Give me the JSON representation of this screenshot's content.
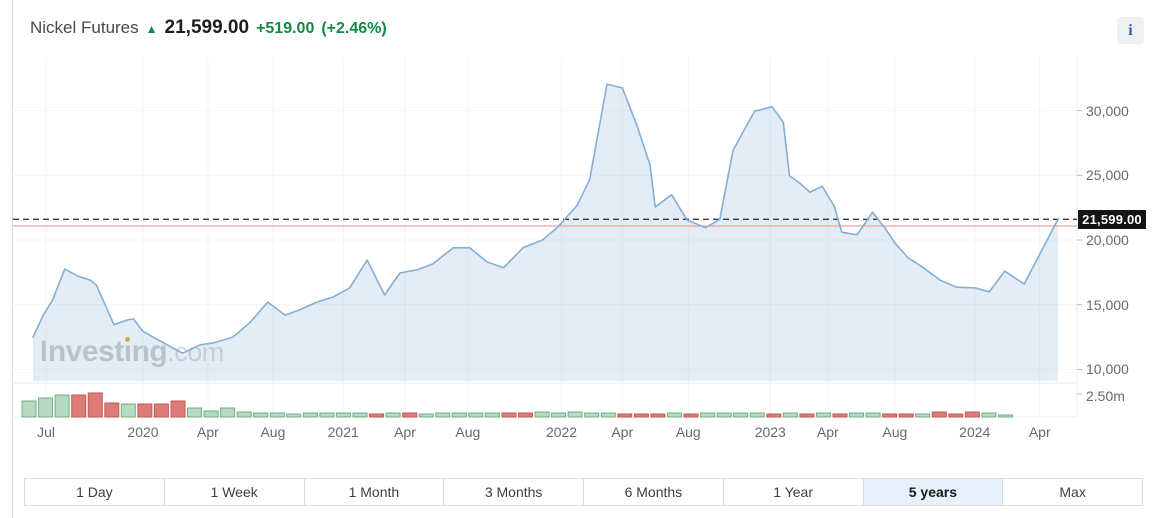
{
  "header": {
    "title": "Nickel Futures",
    "up_arrow": "▲",
    "price": "21,599.00",
    "change": "+519.00",
    "change_percent": "(+2.46%)",
    "info_icon": "i"
  },
  "watermark": {
    "brand_part1": "Invest",
    "brand_dotless_i": "ı",
    "brand_part2": "ng",
    "suffix": ".com"
  },
  "colors": {
    "positive": "#0e8c43",
    "line": "#84aed6",
    "area_fill": "rgba(133,174,214,0.22)",
    "dashed_line": "#3a3a3a",
    "prior_close_line": "#f28b84",
    "vol_up": "#b5d9c1",
    "vol_up_border": "#6fae87",
    "vol_down": "#dc7b77",
    "vol_down_border": "#c25a56",
    "label_bg": "#141414",
    "active_range_bg": "#e8f0fb",
    "info_blue": "#2b66b1"
  },
  "chart_data": {
    "type": "area",
    "title": "Nickel Futures — 5 year price history with monthly volume",
    "series_name": "Nickel Futures",
    "last_price": 21599,
    "last_price_label": "21,599.00",
    "previous_close": 21080,
    "grid": true,
    "legend": false,
    "y_axis": {
      "side": "right",
      "range_hint": [
        9000,
        34000
      ],
      "ticks": [
        {
          "label": "30,000",
          "value": 30000
        },
        {
          "label": "25,000",
          "value": 25000
        },
        {
          "label": "20,000",
          "value": 20000
        },
        {
          "label": "15,000",
          "value": 15000
        },
        {
          "label": "10,000",
          "value": 10000
        }
      ],
      "volume_tick": {
        "label": "2.50m",
        "value": 2.5
      }
    },
    "x_axis": {
      "ticks": [
        {
          "label": "Jul",
          "pos": 0.032
        },
        {
          "label": "2020",
          "pos": 0.123
        },
        {
          "label": "Apr",
          "pos": 0.184
        },
        {
          "label": "Aug",
          "pos": 0.245
        },
        {
          "label": "2021",
          "pos": 0.311
        },
        {
          "label": "Apr",
          "pos": 0.369
        },
        {
          "label": "Aug",
          "pos": 0.428
        },
        {
          "label": "2022",
          "pos": 0.516
        },
        {
          "label": "Apr",
          "pos": 0.573
        },
        {
          "label": "Aug",
          "pos": 0.635
        },
        {
          "label": "2023",
          "pos": 0.712
        },
        {
          "label": "Apr",
          "pos": 0.766
        },
        {
          "label": "Aug",
          "pos": 0.829
        },
        {
          "label": "2024",
          "pos": 0.904
        },
        {
          "label": "Apr",
          "pos": 0.965
        }
      ]
    },
    "price_points": [
      [
        0.0,
        12500
      ],
      [
        0.01,
        14200
      ],
      [
        0.019,
        15350
      ],
      [
        0.031,
        17750
      ],
      [
        0.044,
        17200
      ],
      [
        0.056,
        16900
      ],
      [
        0.062,
        16500
      ],
      [
        0.079,
        13450
      ],
      [
        0.091,
        13800
      ],
      [
        0.098,
        13900
      ],
      [
        0.107,
        12950
      ],
      [
        0.124,
        12200
      ],
      [
        0.146,
        11250
      ],
      [
        0.163,
        11900
      ],
      [
        0.176,
        12050
      ],
      [
        0.195,
        12500
      ],
      [
        0.212,
        13650
      ],
      [
        0.229,
        15200
      ],
      [
        0.246,
        14200
      ],
      [
        0.26,
        14600
      ],
      [
        0.277,
        15200
      ],
      [
        0.293,
        15600
      ],
      [
        0.309,
        16300
      ],
      [
        0.326,
        18450
      ],
      [
        0.343,
        15750
      ],
      [
        0.358,
        17450
      ],
      [
        0.375,
        17700
      ],
      [
        0.39,
        18150
      ],
      [
        0.41,
        19400
      ],
      [
        0.426,
        19400
      ],
      [
        0.443,
        18300
      ],
      [
        0.459,
        17850
      ],
      [
        0.478,
        19400
      ],
      [
        0.497,
        20000
      ],
      [
        0.512,
        21000
      ],
      [
        0.531,
        22700
      ],
      [
        0.543,
        24650
      ],
      [
        0.55,
        27700
      ],
      [
        0.56,
        32050
      ],
      [
        0.575,
        31750
      ],
      [
        0.589,
        28900
      ],
      [
        0.602,
        25800
      ],
      [
        0.607,
        22550
      ],
      [
        0.623,
        23500
      ],
      [
        0.638,
        21550
      ],
      [
        0.656,
        20950
      ],
      [
        0.67,
        21600
      ],
      [
        0.683,
        26950
      ],
      [
        0.704,
        29950
      ],
      [
        0.721,
        30300
      ],
      [
        0.732,
        29100
      ],
      [
        0.738,
        24950
      ],
      [
        0.748,
        24400
      ],
      [
        0.758,
        23700
      ],
      [
        0.77,
        24150
      ],
      [
        0.782,
        22550
      ],
      [
        0.789,
        20600
      ],
      [
        0.804,
        20400
      ],
      [
        0.819,
        22150
      ],
      [
        0.831,
        20950
      ],
      [
        0.841,
        19750
      ],
      [
        0.854,
        18600
      ],
      [
        0.868,
        17900
      ],
      [
        0.885,
        16900
      ],
      [
        0.901,
        16350
      ],
      [
        0.919,
        16300
      ],
      [
        0.933,
        16000
      ],
      [
        0.948,
        17600
      ],
      [
        0.967,
        16600
      ],
      [
        1.0,
        21599
      ]
    ],
    "volume": {
      "unit": "millions of contracts",
      "axis_max": 2.5,
      "bars": [
        [
          1.74,
          "g"
        ],
        [
          2.07,
          "g"
        ],
        [
          2.39,
          "g"
        ],
        [
          2.39,
          "r"
        ],
        [
          2.61,
          "r"
        ],
        [
          1.52,
          "r"
        ],
        [
          1.41,
          "g"
        ],
        [
          1.41,
          "r"
        ],
        [
          1.41,
          "r"
        ],
        [
          1.74,
          "r"
        ],
        [
          0.98,
          "g"
        ],
        [
          0.65,
          "g"
        ],
        [
          0.98,
          "g"
        ],
        [
          0.54,
          "g"
        ],
        [
          0.43,
          "g"
        ],
        [
          0.43,
          "g"
        ],
        [
          0.33,
          "g"
        ],
        [
          0.43,
          "g"
        ],
        [
          0.43,
          "g"
        ],
        [
          0.43,
          "g"
        ],
        [
          0.43,
          "g"
        ],
        [
          0.33,
          "r"
        ],
        [
          0.43,
          "g"
        ],
        [
          0.43,
          "r"
        ],
        [
          0.33,
          "g"
        ],
        [
          0.43,
          "g"
        ],
        [
          0.43,
          "g"
        ],
        [
          0.43,
          "g"
        ],
        [
          0.43,
          "g"
        ],
        [
          0.43,
          "r"
        ],
        [
          0.43,
          "r"
        ],
        [
          0.54,
          "g"
        ],
        [
          0.43,
          "g"
        ],
        [
          0.54,
          "g"
        ],
        [
          0.43,
          "g"
        ],
        [
          0.43,
          "g"
        ],
        [
          0.33,
          "r"
        ],
        [
          0.33,
          "r"
        ],
        [
          0.33,
          "r"
        ],
        [
          0.43,
          "g"
        ],
        [
          0.33,
          "r"
        ],
        [
          0.43,
          "g"
        ],
        [
          0.43,
          "g"
        ],
        [
          0.43,
          "g"
        ],
        [
          0.43,
          "g"
        ],
        [
          0.33,
          "r"
        ],
        [
          0.43,
          "g"
        ],
        [
          0.33,
          "r"
        ],
        [
          0.43,
          "g"
        ],
        [
          0.33,
          "r"
        ],
        [
          0.43,
          "g"
        ],
        [
          0.43,
          "g"
        ],
        [
          0.33,
          "r"
        ],
        [
          0.33,
          "r"
        ],
        [
          0.33,
          "g"
        ],
        [
          0.54,
          "r"
        ],
        [
          0.33,
          "r"
        ],
        [
          0.54,
          "r"
        ],
        [
          0.43,
          "g"
        ],
        [
          0.22,
          "g"
        ]
      ]
    }
  },
  "range_buttons": {
    "active_label": "5 years",
    "items": [
      {
        "label": "1 Day",
        "active": false
      },
      {
        "label": "1 Week",
        "active": false
      },
      {
        "label": "1 Month",
        "active": false
      },
      {
        "label": "3 Months",
        "active": false
      },
      {
        "label": "6 Months",
        "active": false
      },
      {
        "label": "1 Year",
        "active": false
      },
      {
        "label": "5 years",
        "active": true
      },
      {
        "label": "Max",
        "active": false
      }
    ]
  }
}
